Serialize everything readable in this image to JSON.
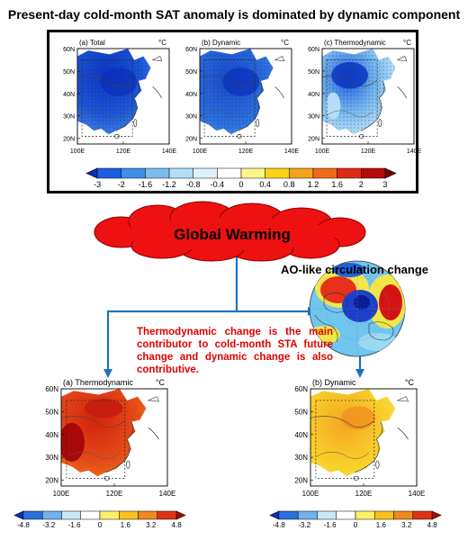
{
  "title": "Present-day cold-month SAT anomaly is dominated by dynamic component",
  "unit": "°C",
  "top_panels": [
    {
      "label": "(a) Total",
      "theme": "total"
    },
    {
      "label": "(b) Dynamic",
      "theme": "dynamic"
    },
    {
      "label": "(c) Thermodynamic",
      "theme": "thermo"
    }
  ],
  "top_lat_labels": [
    "60N",
    "50N",
    "40N",
    "30N",
    "20N"
  ],
  "top_lon_labels": [
    "100E",
    "120E",
    "140E"
  ],
  "top_colorbar": {
    "ticks": [
      "-3",
      "-2",
      "-1.6",
      "-1.2",
      "-0.8",
      "-0.4",
      "0",
      "0.4",
      "0.8",
      "1.2",
      "1.6",
      "2",
      "3"
    ],
    "colors": [
      "#0a2db8",
      "#1e5fe0",
      "#3f8fe8",
      "#7cbdf0",
      "#b4ddf8",
      "#dff1fb",
      "#ffffff",
      "#fff48a",
      "#f9d21a",
      "#f4a21e",
      "#ee6a1a",
      "#e02a14",
      "#b40a0a",
      "#7a0000"
    ]
  },
  "global_warming": "Global Warming",
  "ao_title": "AO-like circulation change",
  "note": "Thermodynamic change is the main contributor to cold-month STA future change and dynamic change is also contributive.",
  "bottom_panels": [
    {
      "label": "(a) Thermodynamic",
      "theme": "fthermo"
    },
    {
      "label": "(b) Dynamic",
      "theme": "fdynamic"
    }
  ],
  "bottom_lat_labels": [
    "60N",
    "50N",
    "40N",
    "30N",
    "20N"
  ],
  "bottom_lon_labels": [
    "100E",
    "120E",
    "140E"
  ],
  "bottom_colorbar": {
    "ticks": [
      "-4.8",
      "-3.2",
      "-1.6",
      "0",
      "1.6",
      "3.2",
      "4.8"
    ],
    "colors": [
      "#0a2db8",
      "#2a6fe0",
      "#6fb2ee",
      "#c9e7f8",
      "#ffffff",
      "#fff06a",
      "#f7c21a",
      "#f08a1c",
      "#e03214",
      "#a80808"
    ]
  },
  "colors": {
    "cloud": "#ee1111",
    "arrow": "#1e73be",
    "note": "#e00000"
  }
}
